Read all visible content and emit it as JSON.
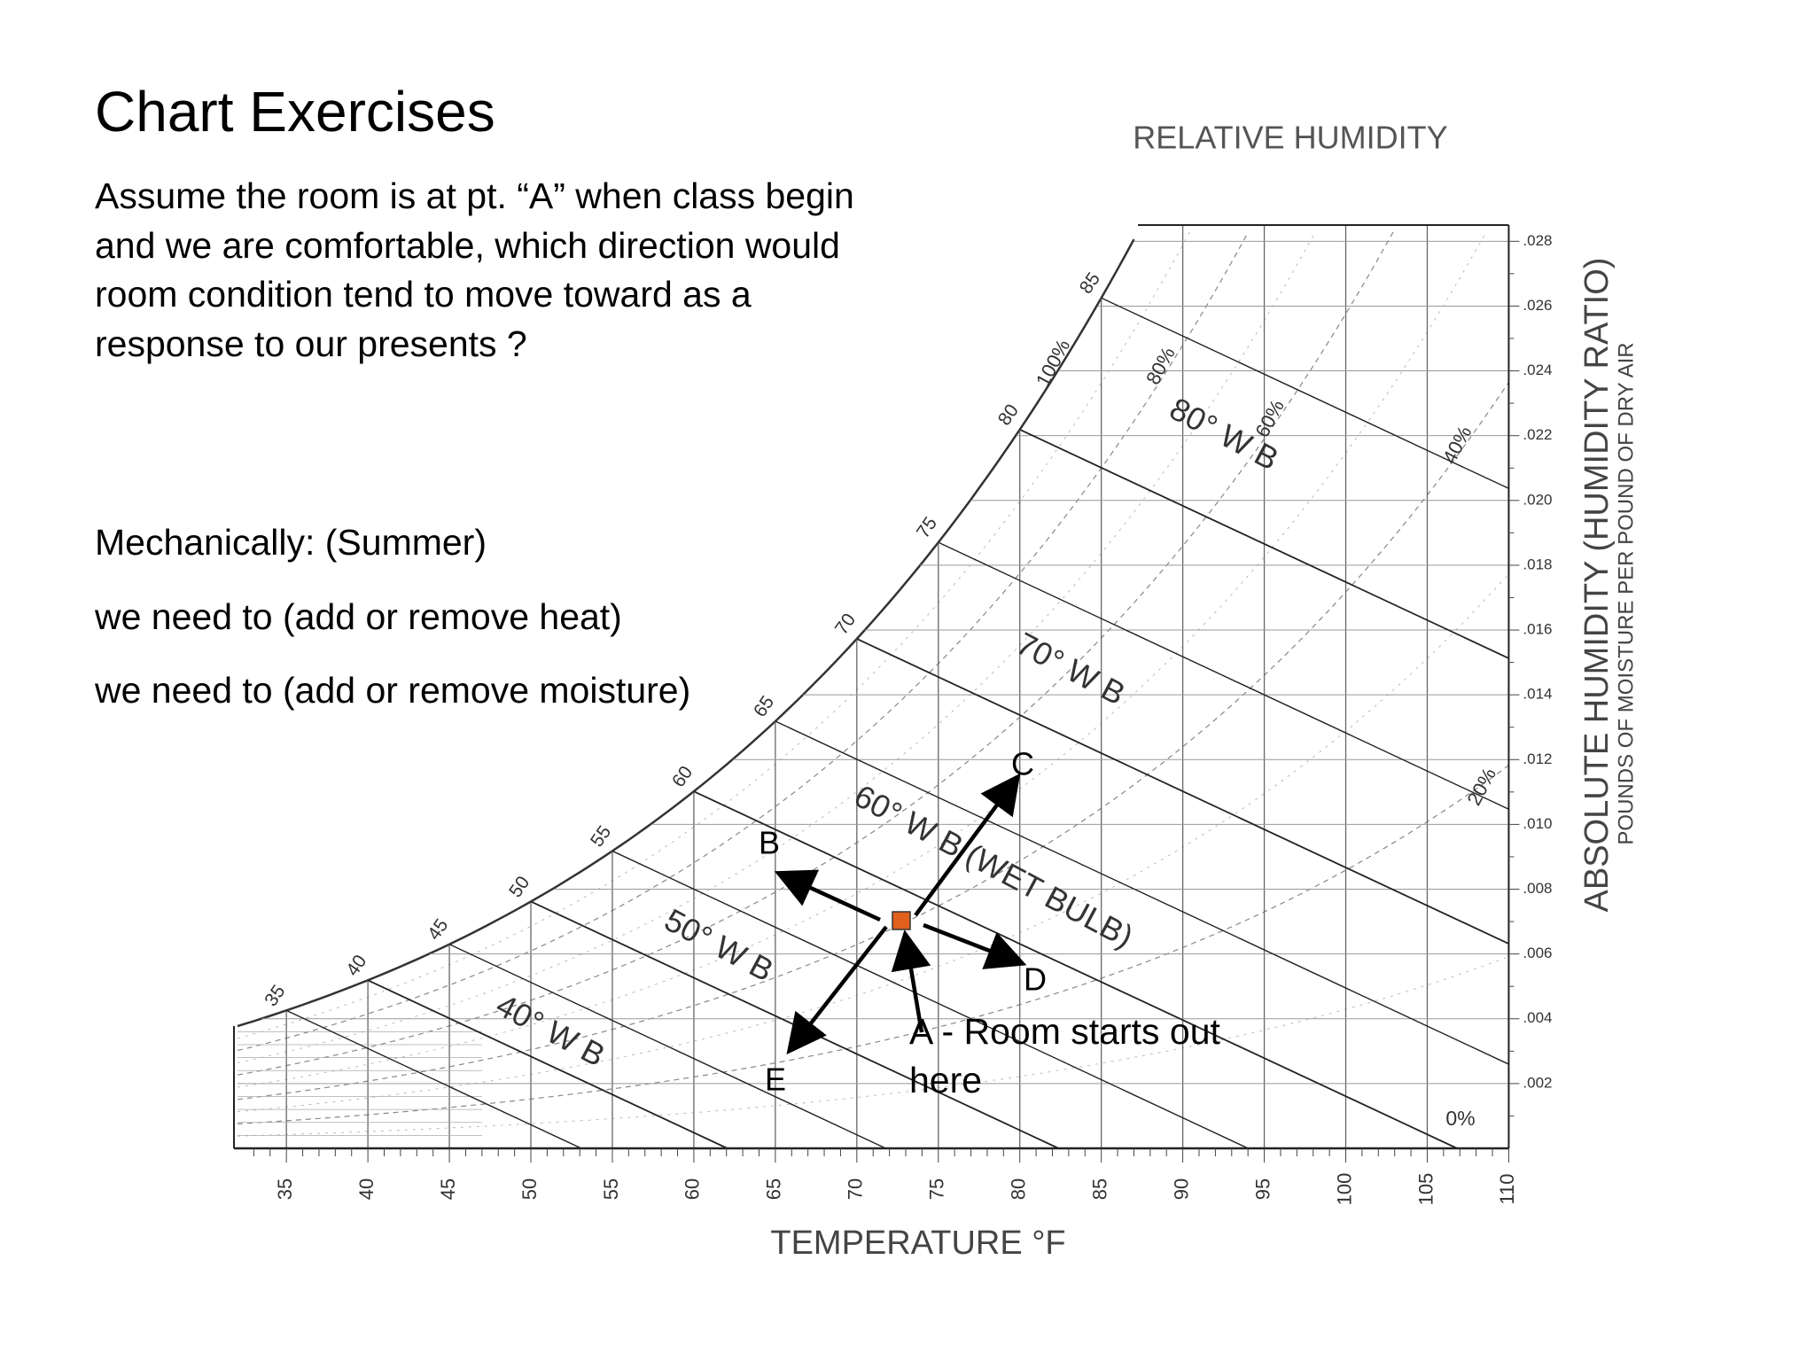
{
  "slide": {
    "title": "Chart Exercises",
    "question": "Assume the room is at pt. “A”  when class begin and we are comfortable, which direction would room condition tend to move toward as a response to our presents ?",
    "mechanically": "Mechanically: (Summer)",
    "heat_prompt": "we need to (add or remove heat)",
    "moisture_prompt": "we need to (add or remove moisture)"
  },
  "psychrometric_chart": {
    "relative_humidity_heading": "RELATIVE HUMIDITY",
    "x_axis_label": "TEMPERATURE  °F",
    "y_axis_label": "ABSOLUTE HUMIDITY  (HUMIDITY RATIO)",
    "y_axis_sublabel": "POUNDS OF MOISTURE PER POUND OF DRY AIR",
    "x_ticks": [
      "35",
      "40",
      "45",
      "50",
      "55",
      "60",
      "65",
      "70",
      "75",
      "80",
      "85",
      "90",
      "95",
      "100",
      "105",
      "110"
    ],
    "y_ticks": [
      ".002",
      ".004",
      ".006",
      ".008",
      ".010",
      ".012",
      ".014",
      ".016",
      ".018",
      ".020",
      ".022",
      ".024",
      ".026",
      ".028"
    ],
    "saturation_labels": [
      "35",
      "40",
      "45",
      "50",
      "55",
      "60",
      "65",
      "70",
      "75",
      "80",
      "85"
    ],
    "rh_labels": [
      "100%",
      "80%",
      "60%",
      "40%",
      "20%",
      "0%"
    ],
    "wet_bulb_labels": [
      "40° W B",
      "50° W B",
      "60° W B (WET BULB)",
      "70° W B",
      "80° W B"
    ]
  },
  "exercise_points": {
    "A": "A - Room starts out here",
    "B": "B",
    "C": "C",
    "D": "D",
    "E": "E",
    "room_marker_color": "#e0601c"
  }
}
